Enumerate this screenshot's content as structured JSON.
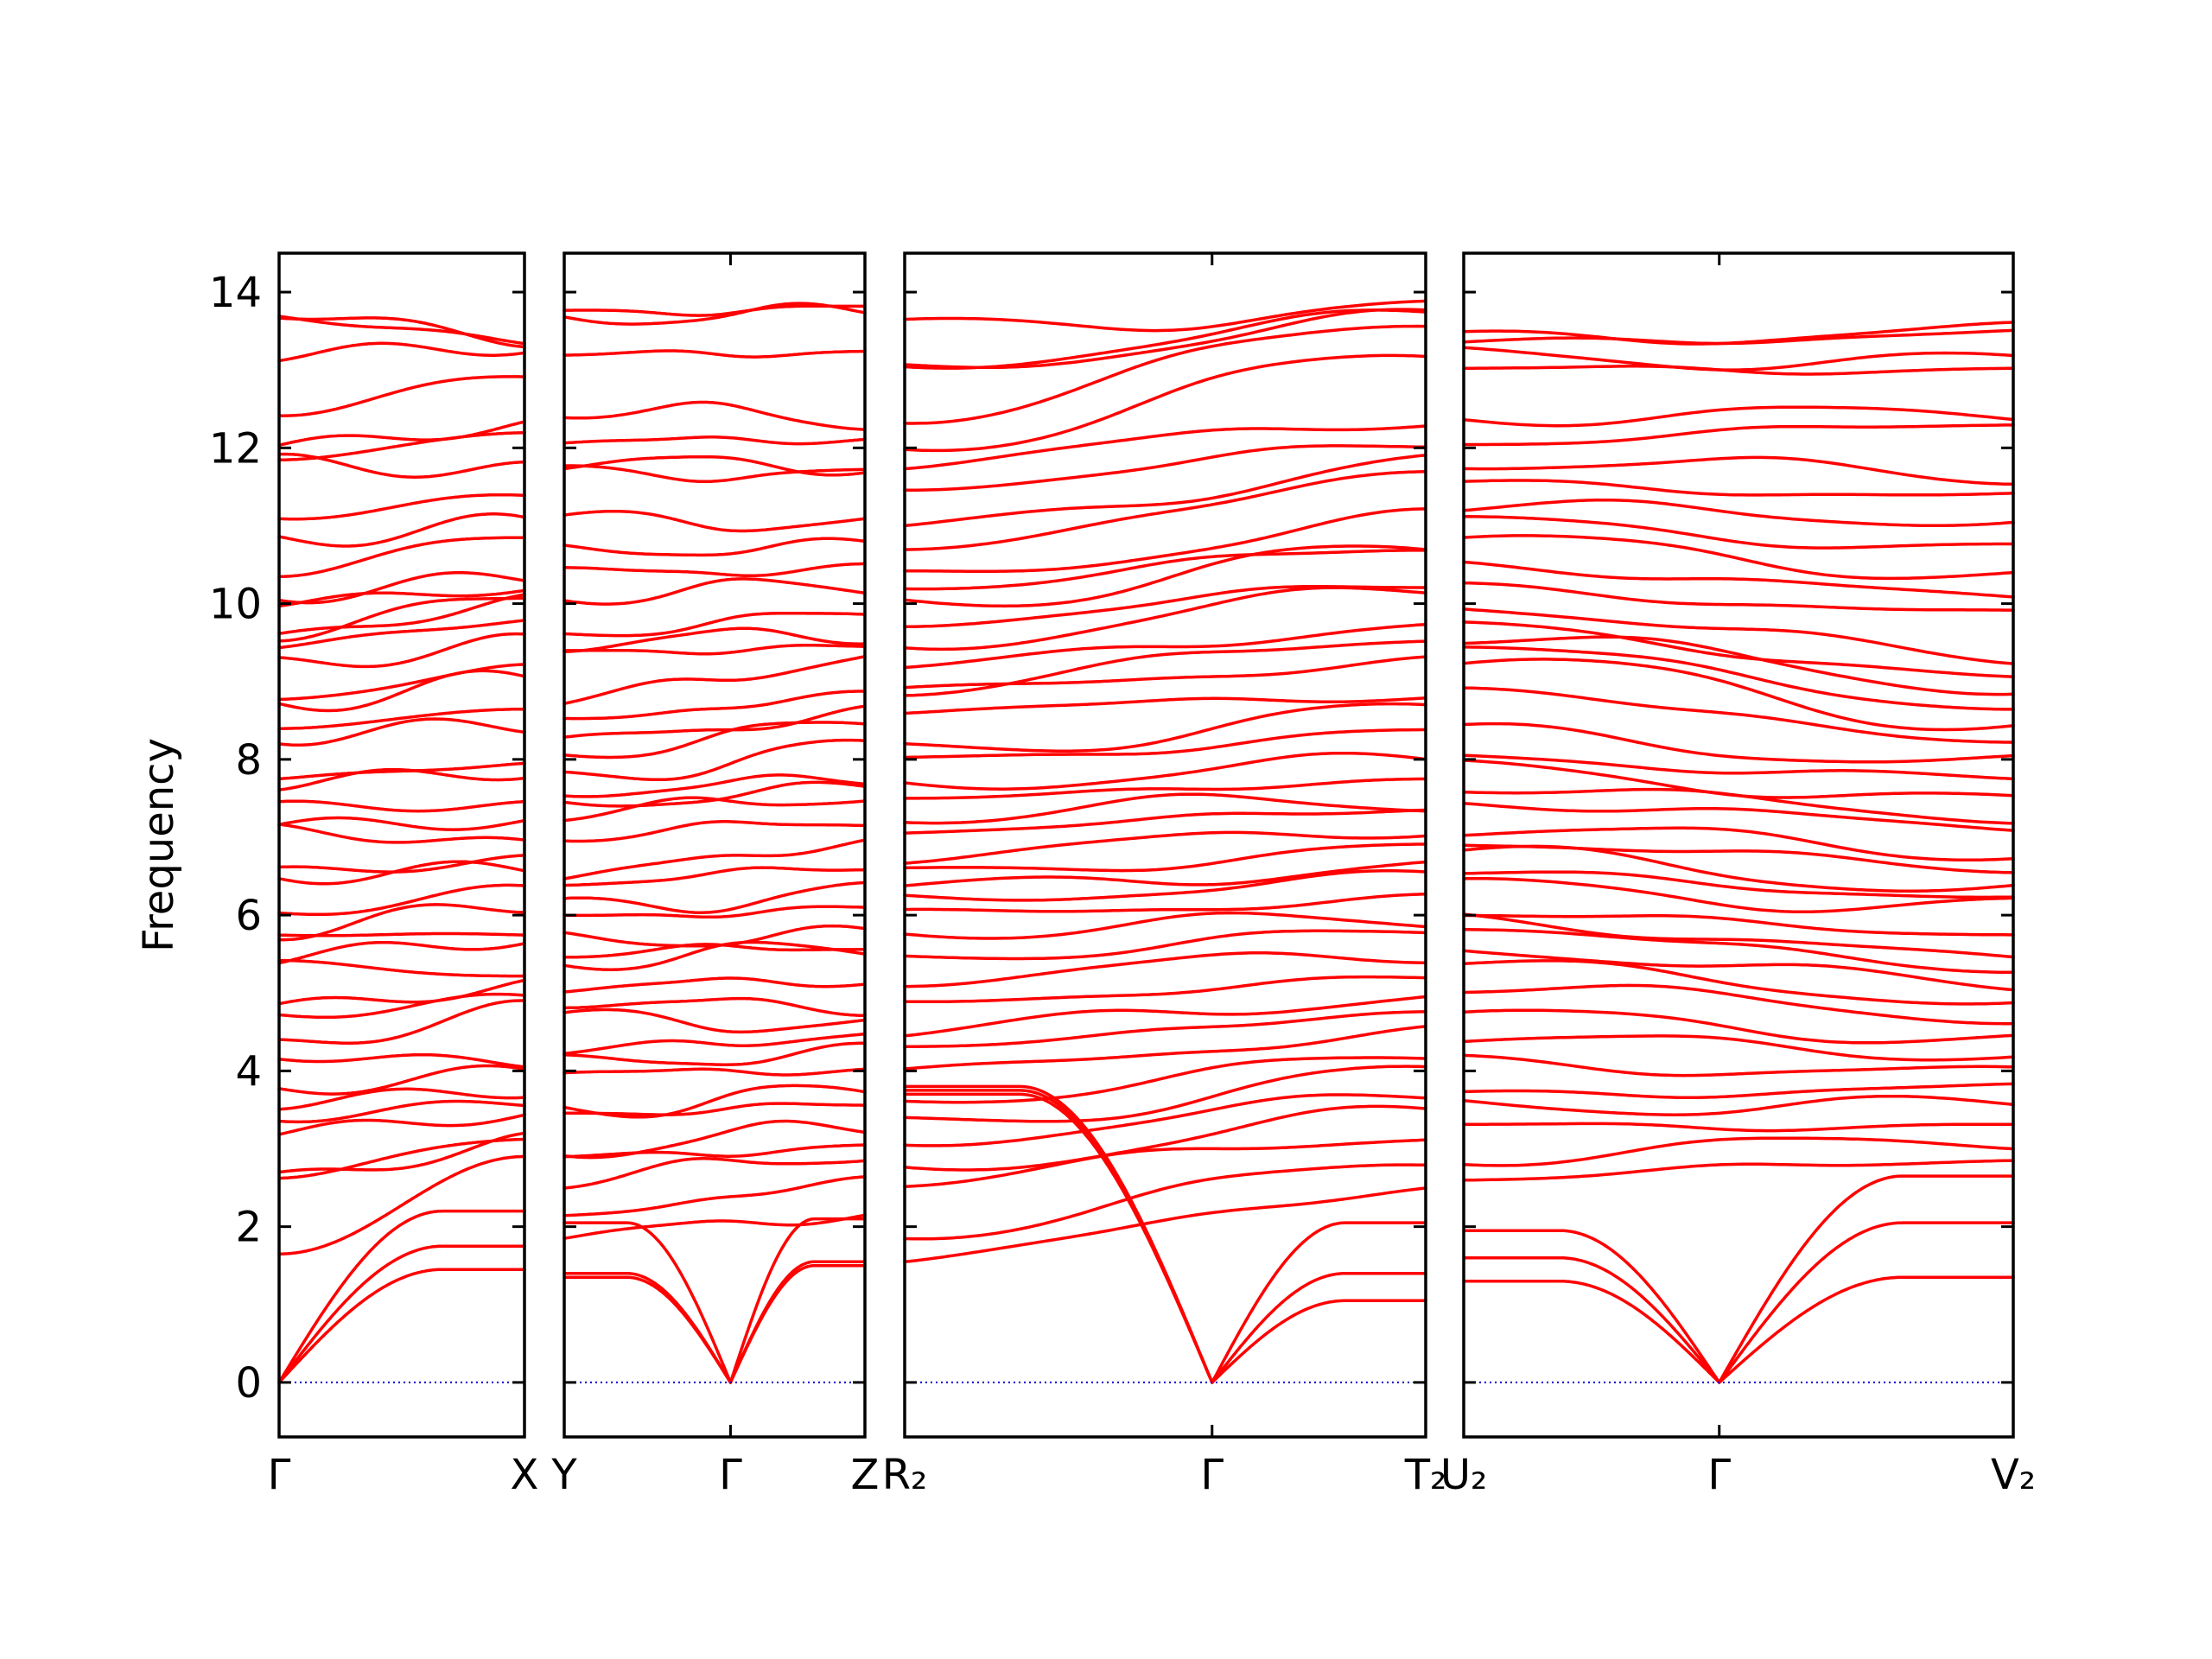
{
  "chart_data": {
    "type": "line",
    "ylabel": "Frequency",
    "ylim": [
      -0.7,
      14.5
    ],
    "yticks": [
      0,
      2,
      4,
      6,
      8,
      10,
      12,
      14
    ],
    "band_color": "#ff0000",
    "zero_line_color": "#0000cc",
    "panels": [
      {
        "path": [
          "Γ",
          "X"
        ],
        "special_points": [
          {
            "x": 0.0,
            "label": "Γ"
          },
          {
            "x": 1.0,
            "label": "X"
          }
        ],
        "acoustic_zero_at": [
          0.0
        ],
        "acoustic_end_values": [
          1.45,
          1.75,
          2.2
        ],
        "optical_start_values": [
          1.65,
          2.6,
          2.65,
          3.2,
          3.4,
          3.6,
          3.75,
          4.2,
          4.3,
          4.7,
          4.8,
          5.4,
          5.45,
          5.75,
          5.8,
          6.0,
          6.5,
          6.55,
          7.1,
          7.15,
          7.4,
          7.7,
          7.75,
          8.3,
          8.4,
          8.7,
          8.75,
          9.2,
          9.45,
          9.55,
          9.6,
          10.0,
          10.1,
          10.4,
          10.8,
          11.1,
          11.8,
          11.85,
          12.0,
          12.45,
          13.2,
          13.7,
          13.75
        ],
        "optical_end_values": [
          2.9,
          3.1,
          3.15,
          3.45,
          3.6,
          3.75,
          4.0,
          4.1,
          4.8,
          4.95,
          5.1,
          5.2,
          5.7,
          5.75,
          6.15,
          6.35,
          6.6,
          6.7,
          6.9,
          7.2,
          7.4,
          7.85,
          7.95,
          8.45,
          8.65,
          9.05,
          9.2,
          9.5,
          9.8,
          10.05,
          10.15,
          10.2,
          10.35,
          10.9,
          11.05,
          11.4,
          11.7,
          12.2,
          12.3,
          12.95,
          13.3,
          13.35,
          13.38
        ]
      },
      {
        "path": [
          "Y",
          "Γ",
          "Z"
        ],
        "special_points": [
          {
            "x": 0.0,
            "label": "Y"
          },
          {
            "x": 0.553,
            "label": "Γ"
          },
          {
            "x": 1.0,
            "label": "Z"
          }
        ],
        "acoustic_zero_at": [
          0.553
        ],
        "acoustic_start_values": [
          1.35,
          1.4,
          2.05
        ],
        "acoustic_end_values": [
          1.5,
          1.55,
          2.1
        ],
        "optical_start_values": [
          1.85,
          2.1,
          2.6,
          2.9,
          3.0,
          3.45,
          3.5,
          3.95,
          4.1,
          4.25,
          4.7,
          4.9,
          5.05,
          5.4,
          5.5,
          5.7,
          6.0,
          6.1,
          6.4,
          6.45,
          7.0,
          7.3,
          7.45,
          7.6,
          7.75,
          8.05,
          8.2,
          8.5,
          8.75,
          9.4,
          9.5,
          9.6,
          10.1,
          10.4,
          10.7,
          11.1,
          11.7,
          11.8,
          12.05,
          12.5,
          13.2,
          13.7,
          13.75
        ],
        "optical_end_values": [
          2.15,
          2.6,
          2.95,
          3.05,
          3.3,
          3.55,
          3.7,
          4.0,
          4.25,
          4.5,
          4.6,
          4.8,
          5.15,
          5.55,
          5.6,
          5.75,
          6.1,
          6.3,
          6.6,
          6.95,
          7.2,
          7.55,
          7.65,
          7.75,
          8.15,
          8.45,
          8.6,
          8.85,
          9.35,
          9.45,
          9.6,
          9.85,
          10.2,
          10.45,
          10.75,
          11.05,
          11.65,
          11.75,
          12.1,
          12.35,
          13.25,
          13.75,
          13.8
        ]
      },
      {
        "path": [
          "R₂",
          "Γ",
          "T₂"
        ],
        "special_points": [
          {
            "x": 0.0,
            "label": "R₂"
          },
          {
            "x": 0.59,
            "label": "Γ"
          },
          {
            "x": 1.0,
            "label": "T₂"
          }
        ],
        "acoustic_zero_at": [
          0.59
        ],
        "acoustic_start_values": [
          3.7,
          3.75,
          3.8
        ],
        "acoustic_end_values": [
          1.05,
          1.4,
          2.05
        ],
        "optical_start_values": [
          1.55,
          1.9,
          2.6,
          2.75,
          3.1,
          3.3,
          3.6,
          3.95,
          4.3,
          4.5,
          4.9,
          5.2,
          5.45,
          5.8,
          6.0,
          6.2,
          6.35,
          6.55,
          6.75,
          7.05,
          7.3,
          7.5,
          7.7,
          8.0,
          8.1,
          8.6,
          8.85,
          8.9,
          9.2,
          9.5,
          9.75,
          10.0,
          10.2,
          10.3,
          10.7,
          10.95,
          11.5,
          11.8,
          12.0,
          12.4,
          13.0,
          13.05,
          13.55
        ],
        "optical_end_values": [
          2.5,
          2.85,
          3.2,
          3.5,
          3.7,
          3.95,
          4.15,
          4.5,
          4.75,
          5.0,
          5.2,
          5.5,
          5.75,
          5.9,
          6.2,
          6.5,
          6.65,
          6.85,
          7.1,
          7.35,
          7.45,
          7.75,
          8.0,
          8.35,
          8.6,
          8.8,
          9.25,
          9.6,
          9.75,
          10.2,
          10.25,
          10.65,
          10.7,
          11.1,
          11.7,
          11.85,
          12.05,
          12.35,
          13.2,
          13.65,
          13.7,
          13.75,
          13.78
        ]
      },
      {
        "path": [
          "U₂",
          "Γ",
          "V₂"
        ],
        "special_points": [
          {
            "x": 0.0,
            "label": "U₂"
          },
          {
            "x": 0.465,
            "label": "Γ"
          },
          {
            "x": 1.0,
            "label": "V₂"
          }
        ],
        "acoustic_zero_at": [
          0.465
        ],
        "acoustic_start_values": [
          1.3,
          1.6,
          1.95
        ],
        "acoustic_end_values": [
          1.35,
          2.05,
          2.65
        ],
        "optical_start_values": [
          2.6,
          2.9,
          3.3,
          3.6,
          3.7,
          4.1,
          4.4,
          4.7,
          5.1,
          5.4,
          5.6,
          5.85,
          5.95,
          6.0,
          6.35,
          6.55,
          6.8,
          6.95,
          7.1,
          7.45,
          7.65,
          7.9,
          8.05,
          8.35,
          8.9,
          9.25,
          9.45,
          9.6,
          9.75,
          10.0,
          10.2,
          10.5,
          10.8,
          11.05,
          11.25,
          11.55,
          11.85,
          12.05,
          12.4,
          13.0,
          13.2,
          13.35,
          13.4
        ],
        "optical_end_values": [
          2.85,
          3.1,
          3.3,
          3.55,
          3.8,
          3.95,
          4.2,
          4.4,
          4.7,
          4.9,
          5.1,
          5.3,
          5.4,
          5.75,
          6.1,
          6.25,
          6.35,
          6.6,
          6.8,
          7.1,
          7.25,
          7.45,
          7.75,
          7.95,
          8.2,
          8.45,
          8.65,
          8.95,
          9.05,
          9.3,
          9.85,
          10.05,
          10.35,
          10.7,
          11.1,
          11.4,
          11.65,
          12.3,
          12.4,
          13.0,
          13.1,
          13.5,
          13.52
        ]
      }
    ]
  }
}
